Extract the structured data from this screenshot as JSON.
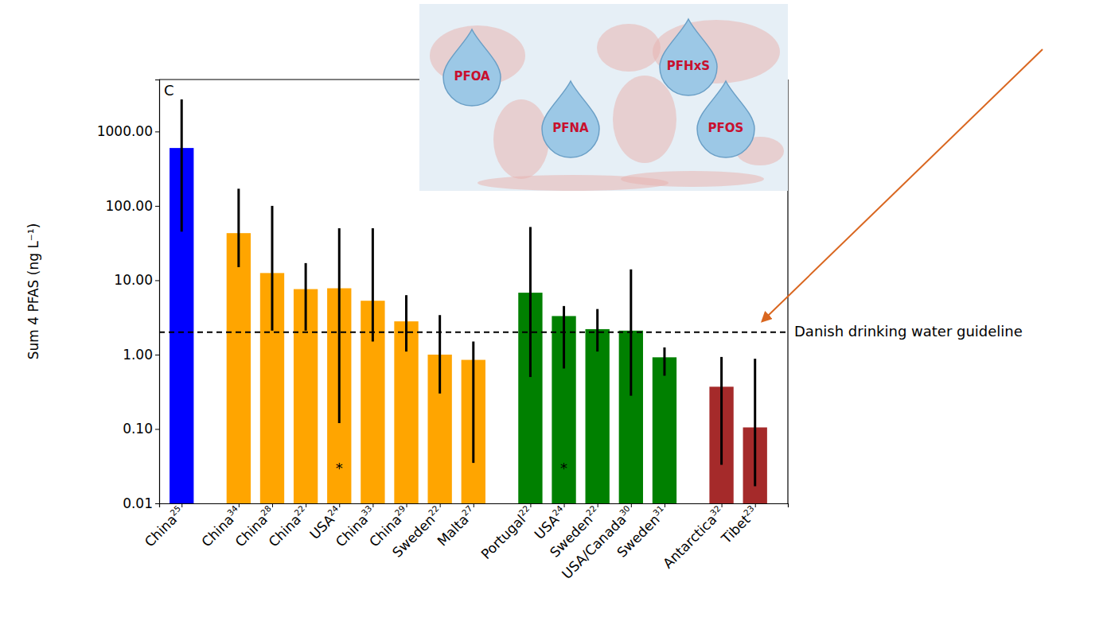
{
  "chart_data": {
    "type": "bar",
    "panel_label": "C",
    "ylabel": "Sum 4 PFAS (ng L⁻¹)",
    "log": "y",
    "categories": [
      "China",
      "China",
      "China",
      "China",
      "USA",
      "China",
      "China",
      "Sweden",
      "Malta",
      "Portugal",
      "USA",
      "Sweden",
      "USA/Canada",
      "Sweden",
      "Antarctica",
      "Tibet"
    ],
    "references": [
      "25",
      "34",
      "28",
      "22",
      "24",
      "33",
      "29",
      "22",
      "27",
      "22",
      "24",
      "22",
      "30",
      "31",
      "32",
      "23"
    ],
    "values": [
      600,
      43,
      12.5,
      7.6,
      7.8,
      5.3,
      2.8,
      1.0,
      0.85,
      6.8,
      3.3,
      2.2,
      2.1,
      0.92,
      0.37,
      0.105
    ],
    "error_low": [
      45,
      15,
      2.1,
      2.1,
      0.12,
      1.5,
      1.1,
      0.3,
      0.035,
      0.5,
      0.65,
      1.1,
      0.28,
      0.52,
      0.033,
      0.017
    ],
    "error_high": [
      2700,
      170,
      100,
      17,
      50,
      50,
      6.3,
      3.4,
      1.5,
      52,
      4.5,
      4.1,
      14,
      1.25,
      0.93,
      0.88
    ],
    "colors": [
      "#0000ff",
      "#ffa500",
      "#ffa500",
      "#ffa500",
      "#ffa500",
      "#ffa500",
      "#ffa500",
      "#ffa500",
      "#ffa500",
      "#008000",
      "#008000",
      "#008000",
      "#008000",
      "#008000",
      "#a52a2a",
      "#a52a2a"
    ],
    "ylim": [
      0.01,
      5000
    ],
    "yticks": [
      0.01,
      {
        "value": 0.1,
        "label": "0.10"
      },
      {
        "value": 1,
        "label": "1.00"
      },
      {
        "value": 10,
        "label": "10.00"
      },
      {
        "value": 100,
        "label": "100.00"
      },
      {
        "value": 1000,
        "label": "1000.00"
      }
    ],
    "guideline": {
      "value": 2,
      "label": "Danish drinking water guideline"
    },
    "annotations": [
      {
        "text": "*",
        "index": 4,
        "y": 0.03
      },
      {
        "text": "*",
        "index": 10,
        "y": 0.03
      }
    ],
    "inset_labels": [
      "PFOA",
      "PFNA",
      "PFHxS",
      "PFOS"
    ]
  }
}
